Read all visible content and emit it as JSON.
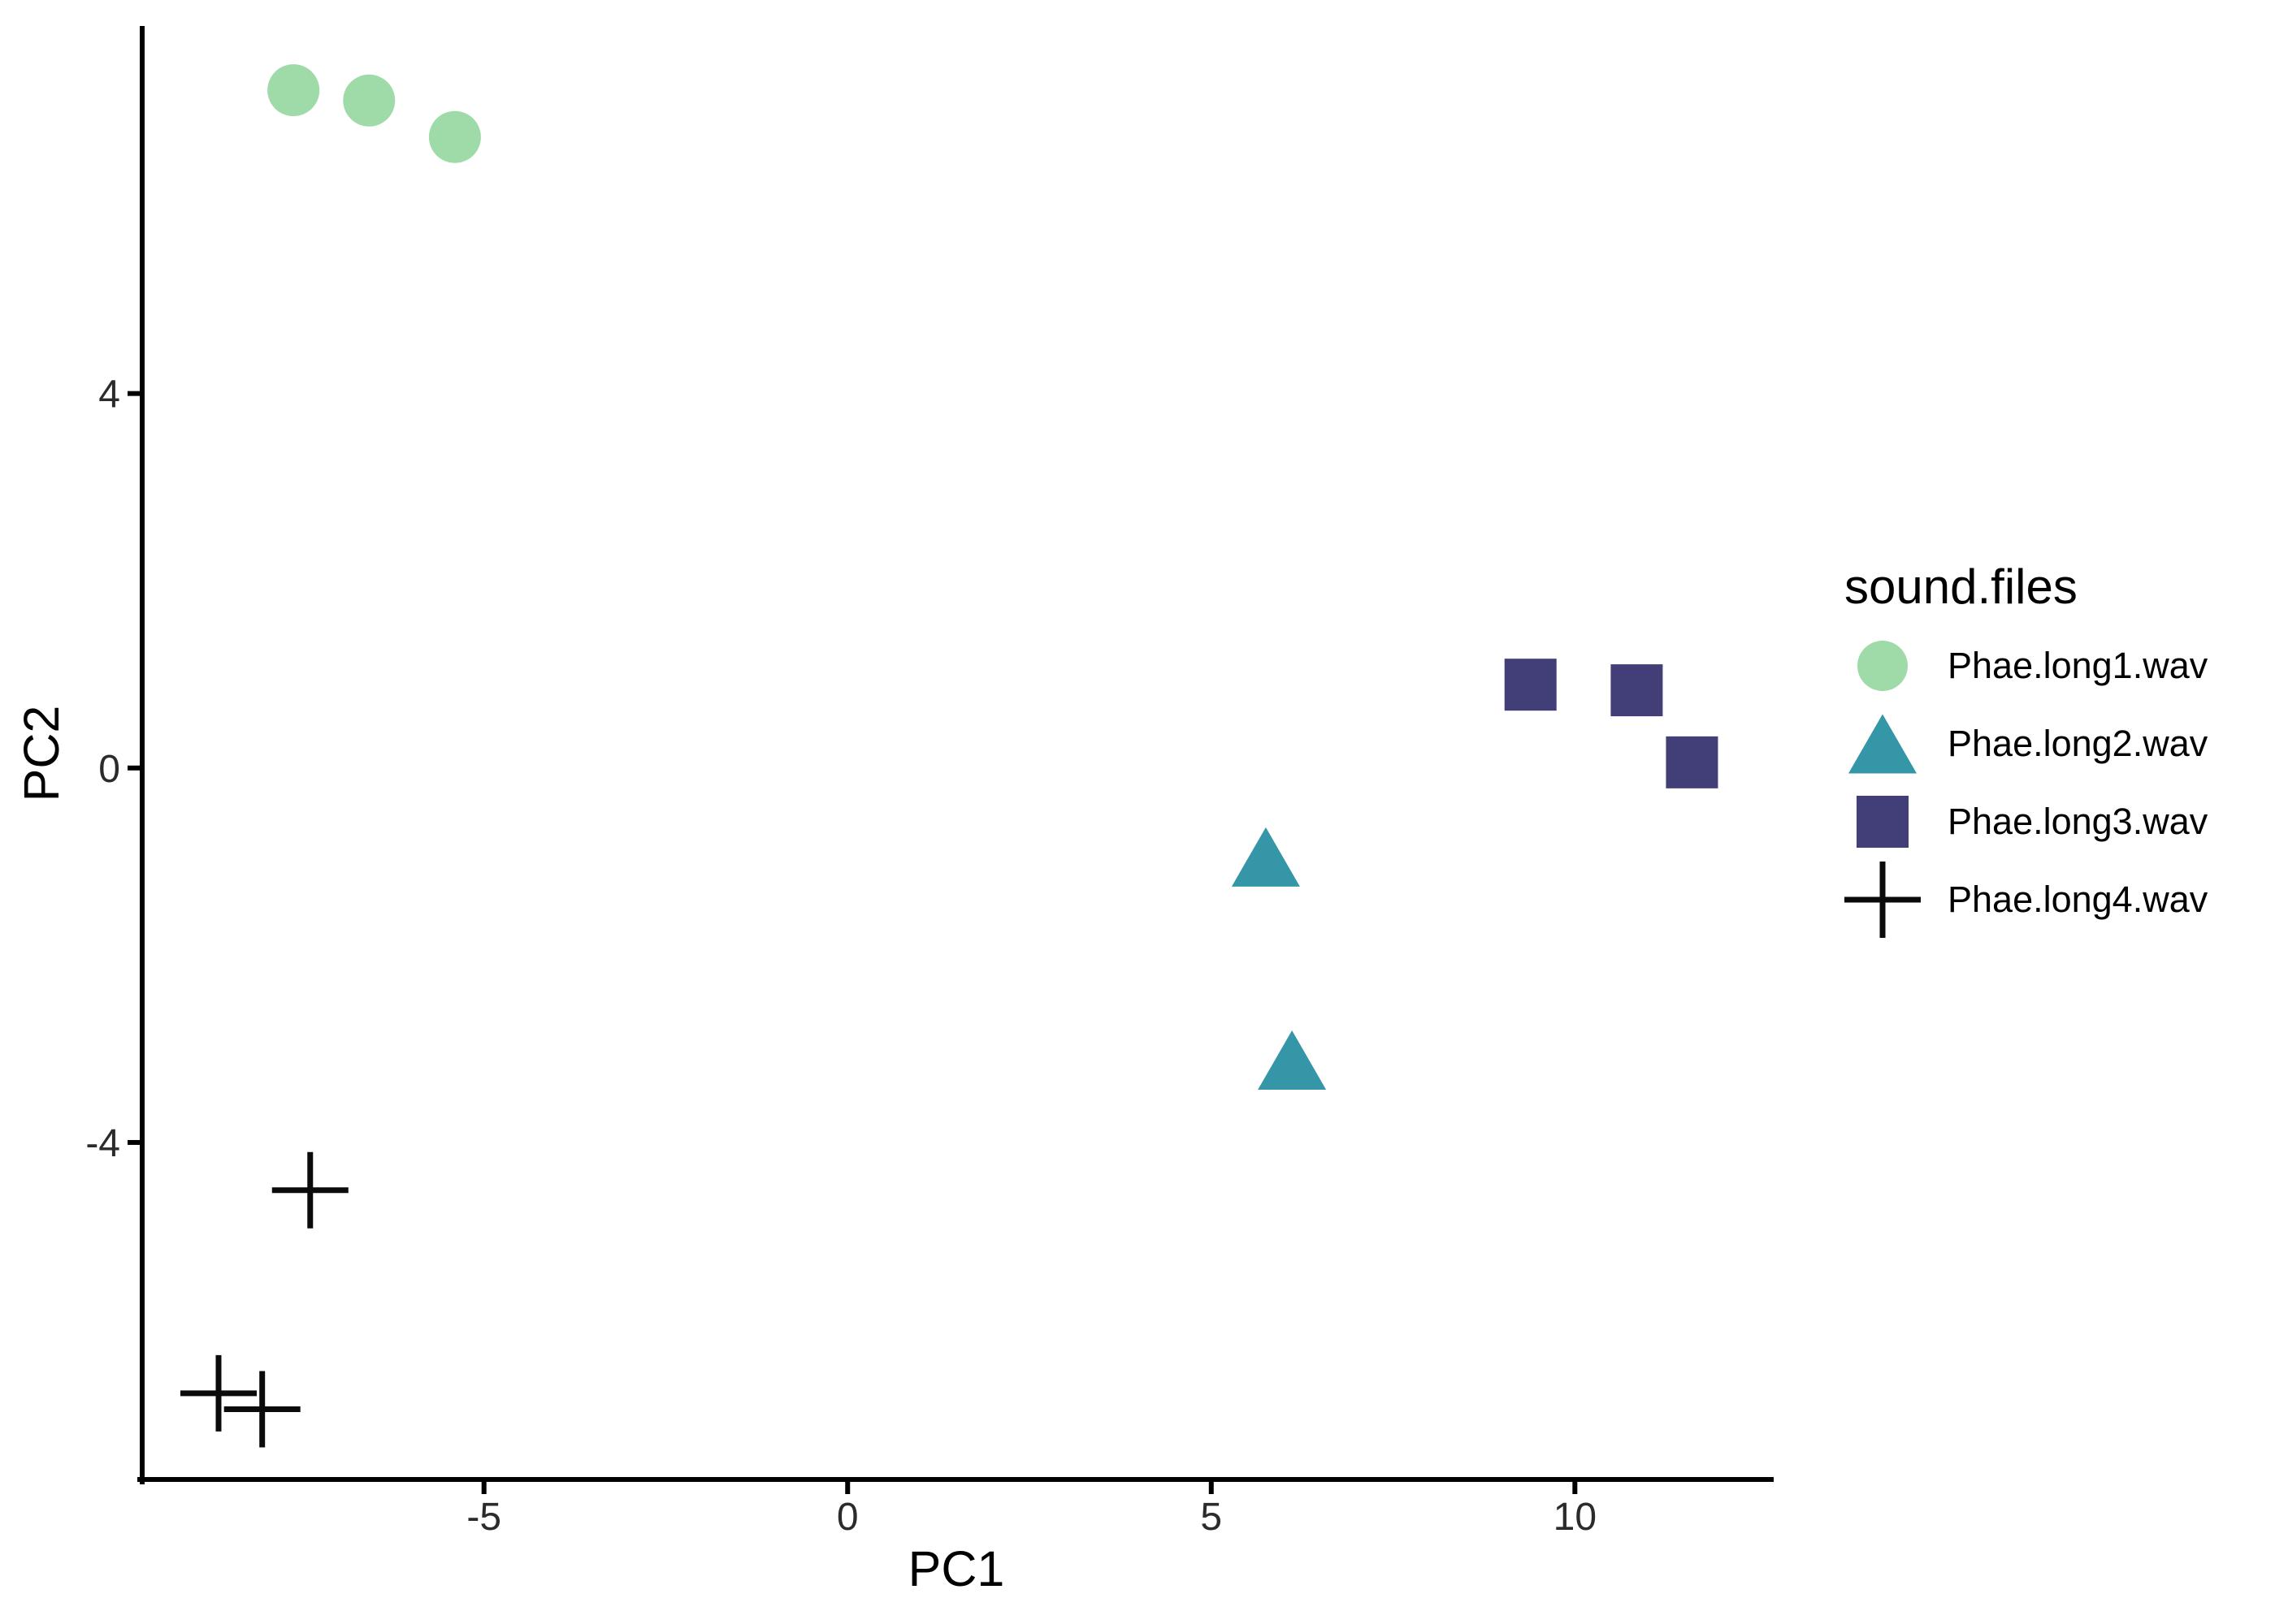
{
  "figure": {
    "background": "#ffffff",
    "axis_line_color": "#000000",
    "tick_text_color": "#2b2b2b",
    "title_text_color": "#000000"
  },
  "chart_data": {
    "type": "scatter",
    "title": "",
    "xlabel": "PC1",
    "ylabel": "PC2",
    "xlim": [
      -9.7,
      12.7
    ],
    "ylim": [
      -7.6,
      7.9
    ],
    "grid": false,
    "legend_title": "sound.files",
    "legend_position": "right",
    "x_ticks": [
      {
        "value": -5,
        "label": "-5"
      },
      {
        "value": 0,
        "label": "0"
      },
      {
        "value": 5,
        "label": "5"
      },
      {
        "value": 10,
        "label": "10"
      }
    ],
    "y_ticks": [
      {
        "value": 4,
        "label": "4"
      },
      {
        "value": 0,
        "label": "0"
      },
      {
        "value": -4,
        "label": "-4"
      }
    ],
    "series": [
      {
        "name": "Phae.long1.wav",
        "marker": "circle",
        "color": "#9fdba8",
        "points": [
          [
            -7.62,
            7.24
          ],
          [
            -6.58,
            7.13
          ],
          [
            -5.4,
            6.74
          ]
        ]
      },
      {
        "name": "Phae.long2.wav",
        "marker": "triangle",
        "color": "#3596a8",
        "points": [
          [
            5.75,
            -0.95
          ],
          [
            6.11,
            -3.12
          ]
        ]
      },
      {
        "name": "Phae.long3.wav",
        "marker": "square",
        "color": "#423f78",
        "points": [
          [
            9.39,
            0.89
          ],
          [
            10.85,
            0.83
          ],
          [
            11.61,
            0.06
          ]
        ]
      },
      {
        "name": "Phae.long4.wav",
        "marker": "cross",
        "color": "#0b0b0b",
        "points": [
          [
            -7.39,
            -4.51
          ],
          [
            -8.65,
            -6.68
          ],
          [
            -8.05,
            -6.85
          ]
        ]
      }
    ]
  }
}
